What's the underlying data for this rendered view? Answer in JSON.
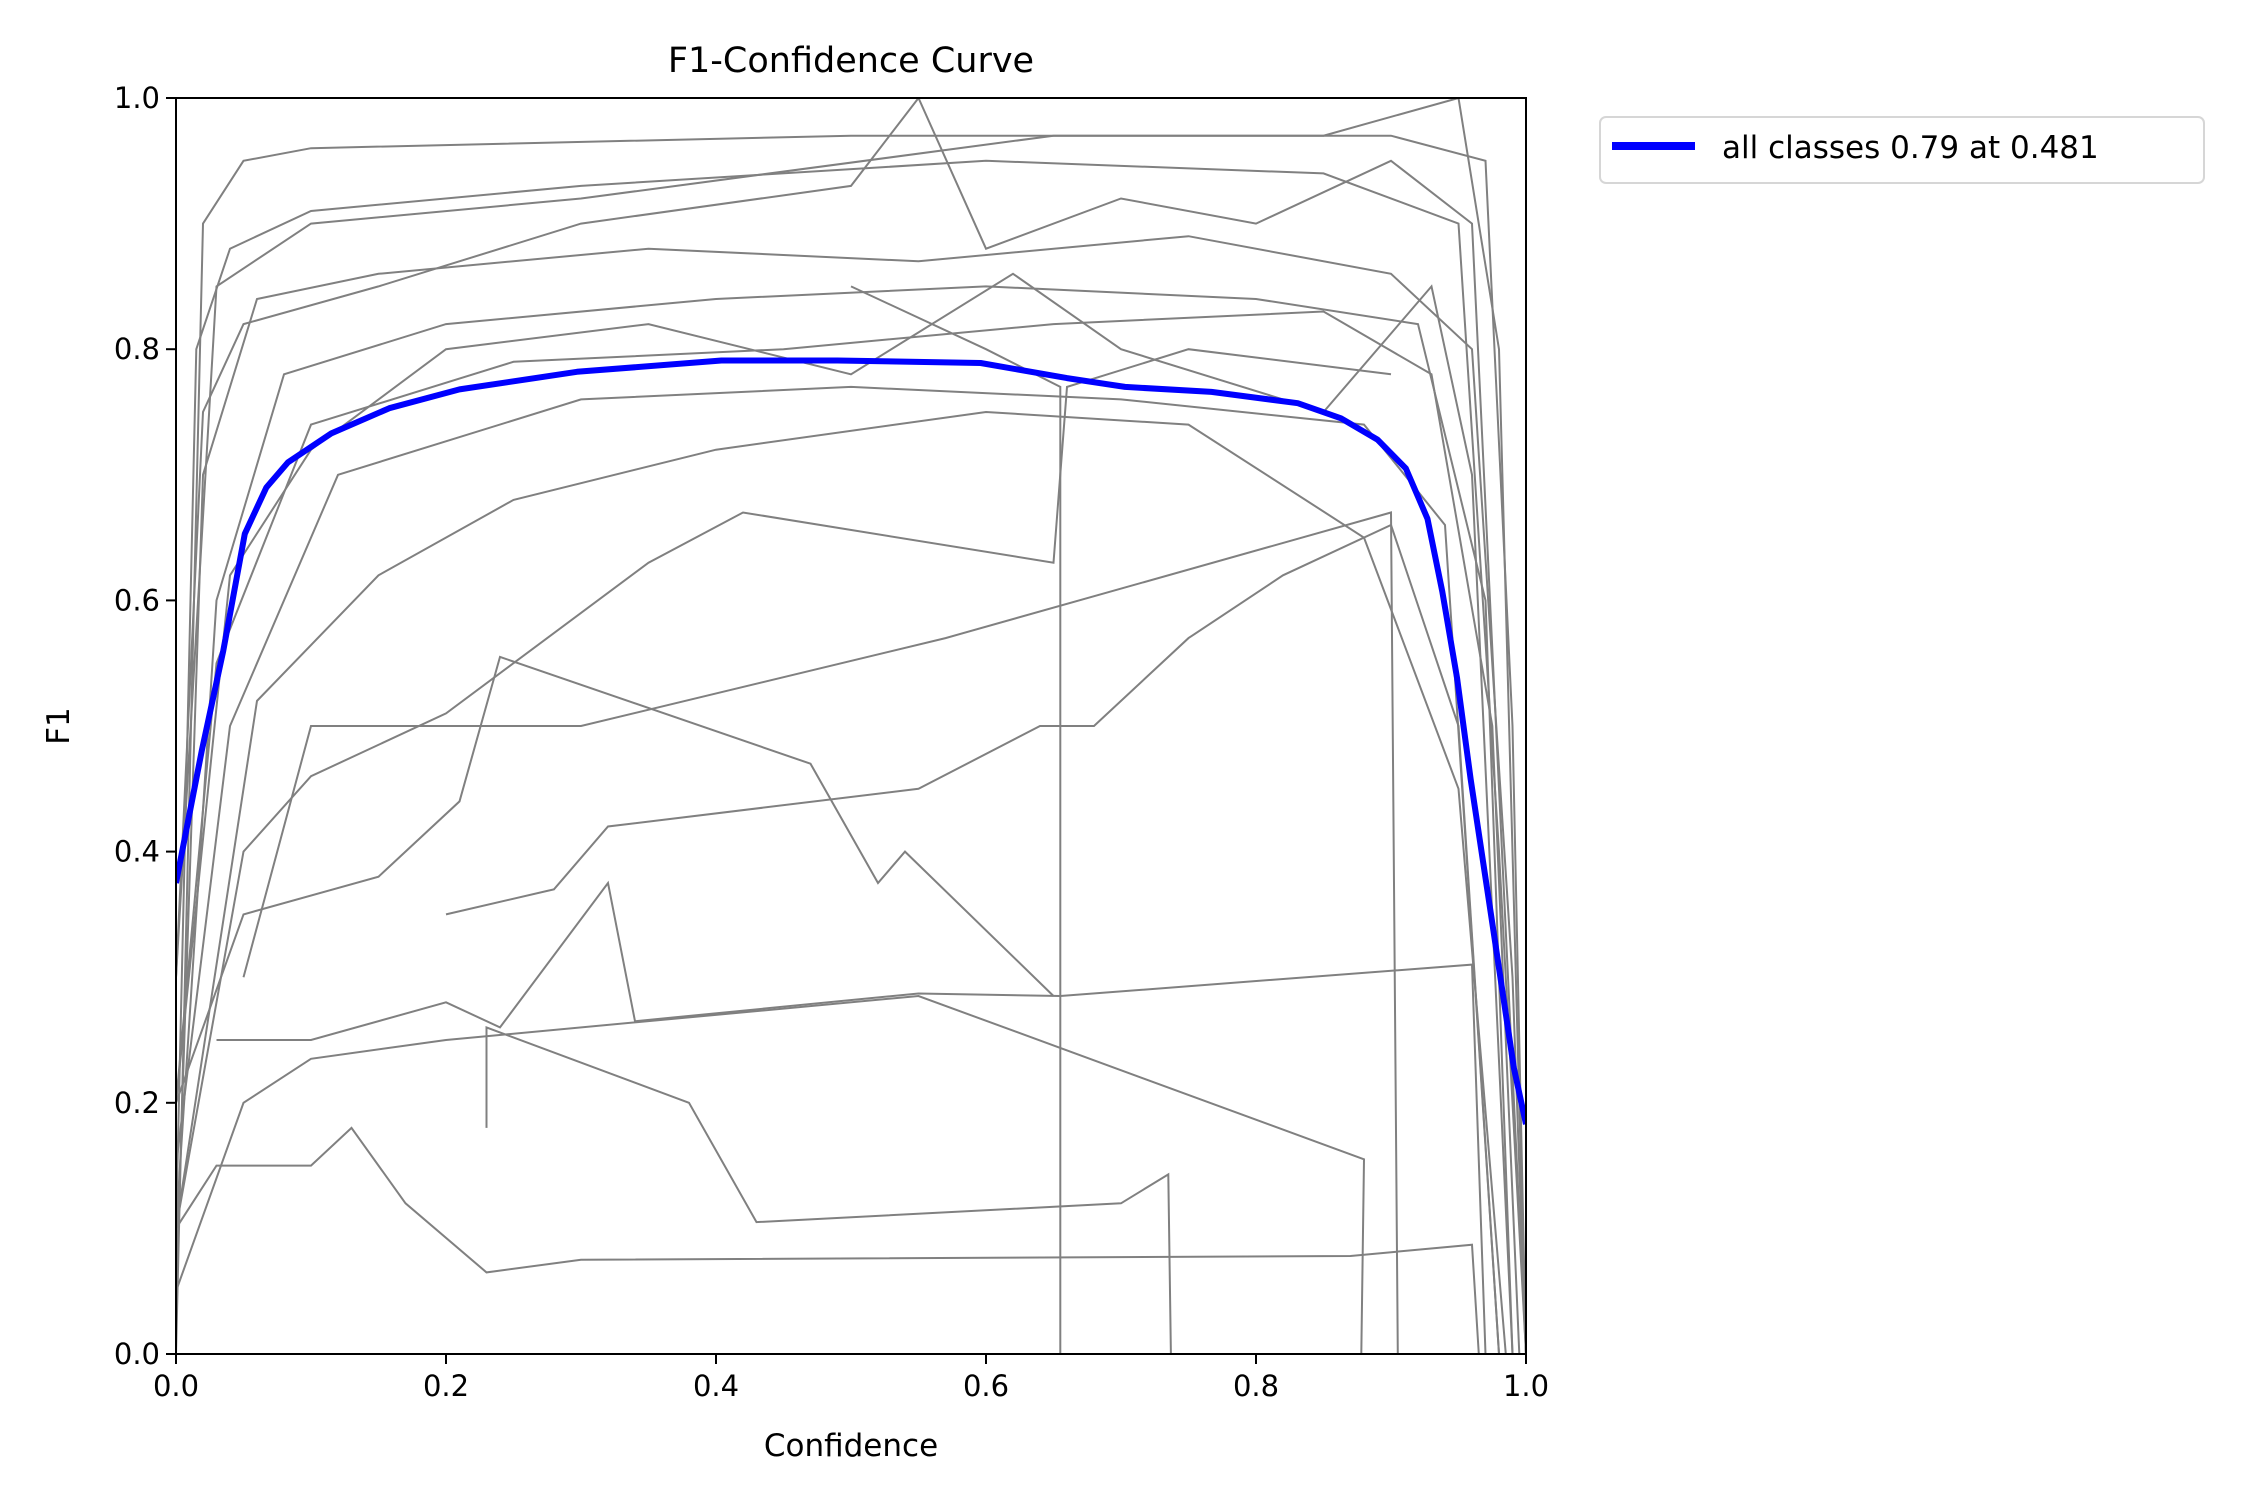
{
  "chart_data": {
    "type": "line",
    "title": "F1-Confidence Curve",
    "xlabel": "Confidence",
    "ylabel": "F1",
    "xlim": [
      0,
      1
    ],
    "ylim": [
      0,
      1
    ],
    "xticks": [
      "0.0",
      "0.2",
      "0.4",
      "0.6",
      "0.8",
      "1.0"
    ],
    "yticks": [
      "0.0",
      "0.2",
      "0.4",
      "0.6",
      "0.8",
      "1.0"
    ],
    "grid": false,
    "legend_placement": "outside-top-right",
    "colors": {
      "classes": "#808080",
      "all_classes": "#0000ff"
    },
    "series": [
      {
        "name": "all classes 0.79 at 0.481",
        "color": "#0000ff",
        "x": [
          0,
          0.019,
          0.035,
          0.051,
          0.067,
          0.083,
          0.115,
          0.158,
          0.21,
          0.297,
          0.404,
          0.49,
          0.596,
          0.66,
          0.703,
          0.767,
          0.831,
          0.863,
          0.89,
          0.911,
          0.927,
          0.938,
          0.949,
          0.959,
          0.975,
          0.991,
          1.0
        ],
        "y": [
          0.375,
          0.48,
          0.56,
          0.653,
          0.69,
          0.71,
          0.733,
          0.753,
          0.768,
          0.782,
          0.791,
          0.791,
          0.789,
          0.777,
          0.77,
          0.766,
          0.757,
          0.745,
          0.728,
          0.705,
          0.665,
          0.607,
          0.538,
          0.458,
          0.343,
          0.228,
          0.183
        ]
      }
    ],
    "class_curves": [
      {
        "x": [
          0,
          0.02,
          0.05,
          0.1,
          0.5,
          0.9,
          0.97,
          0.99,
          1.0
        ],
        "y": [
          0,
          0.9,
          0.95,
          0.96,
          0.97,
          0.97,
          0.95,
          0.5,
          0
        ]
      },
      {
        "x": [
          0,
          0.015,
          0.04,
          0.1,
          0.3,
          0.6,
          0.85,
          0.95,
          0.98,
          1.0
        ],
        "y": [
          0.1,
          0.8,
          0.88,
          0.91,
          0.93,
          0.95,
          0.94,
          0.9,
          0.4,
          0
        ]
      },
      {
        "x": [
          0,
          0.02,
          0.06,
          0.15,
          0.35,
          0.55,
          0.75,
          0.9,
          0.96,
          0.99,
          1.0
        ],
        "y": [
          0.05,
          0.7,
          0.84,
          0.86,
          0.88,
          0.87,
          0.89,
          0.86,
          0.8,
          0.3,
          0
        ]
      },
      {
        "x": [
          0,
          0.03,
          0.08,
          0.2,
          0.4,
          0.6,
          0.8,
          0.92,
          0.97,
          0.99
        ],
        "y": [
          0.1,
          0.6,
          0.78,
          0.82,
          0.84,
          0.85,
          0.84,
          0.82,
          0.6,
          0
        ]
      },
      {
        "x": [
          0,
          0.03,
          0.1,
          0.25,
          0.45,
          0.65,
          0.85,
          0.93,
          0.975,
          0.995
        ],
        "y": [
          0.2,
          0.55,
          0.74,
          0.79,
          0.8,
          0.82,
          0.83,
          0.78,
          0.5,
          0
        ]
      },
      {
        "x": [
          0,
          0.04,
          0.12,
          0.3,
          0.5,
          0.7,
          0.88,
          0.94,
          0.98
        ],
        "y": [
          0.15,
          0.5,
          0.7,
          0.76,
          0.77,
          0.76,
          0.74,
          0.66,
          0
        ]
      },
      {
        "x": [
          0,
          0.03,
          0.1,
          0.13,
          0.17,
          0.23,
          0.3,
          0.87,
          0.96,
          0.965
        ],
        "y": [
          0.1,
          0.15,
          0.15,
          0.18,
          0.12,
          0.065,
          0.075,
          0.078,
          0.087,
          0
        ]
      },
      {
        "x": [
          0,
          0.05,
          0.1,
          0.2,
          0.55,
          0.88,
          0.878
        ],
        "y": [
          0.05,
          0.2,
          0.235,
          0.25,
          0.285,
          0.155,
          0
        ]
      },
      {
        "x": [
          0.03,
          0.1,
          0.2,
          0.24,
          0.32,
          0.34,
          0.55,
          0.655,
          0.96,
          0.97
        ],
        "y": [
          0.25,
          0.25,
          0.28,
          0.26,
          0.375,
          0.265,
          0.287,
          0.285,
          0.31,
          0
        ]
      },
      {
        "x": [
          0,
          0.05,
          0.15,
          0.21,
          0.24,
          0.47,
          0.52,
          0.54,
          0.65
        ],
        "y": [
          0.2,
          0.35,
          0.38,
          0.44,
          0.555,
          0.47,
          0.375,
          0.4,
          0.285
        ]
      },
      {
        "x": [
          0,
          0.05,
          0.1,
          0.2,
          0.35,
          0.42,
          0.65,
          0.66,
          0.75,
          0.9
        ],
        "y": [
          0.1,
          0.4,
          0.46,
          0.51,
          0.63,
          0.67,
          0.63,
          0.77,
          0.8,
          0.78
        ]
      },
      {
        "x": [
          0.5,
          0.6,
          0.655,
          0.655
        ],
        "y": [
          0.85,
          0.8,
          0.77,
          0
        ]
      },
      {
        "x": [
          0.23,
          0.23,
          0.38,
          0.43,
          0.7,
          0.735,
          0.737
        ],
        "y": [
          0.18,
          0.26,
          0.2,
          0.105,
          0.12,
          0.143,
          0
        ]
      },
      {
        "x": [
          0.05,
          0.1,
          0.3,
          0.57,
          0.9,
          0.905
        ],
        "y": [
          0.3,
          0.5,
          0.5,
          0.57,
          0.67,
          0
        ]
      },
      {
        "x": [
          0.2,
          0.28,
          0.32,
          0.55,
          0.64,
          0.68,
          0.75,
          0.82,
          0.9,
          0.95,
          0.98
        ],
        "y": [
          0.35,
          0.37,
          0.42,
          0.45,
          0.5,
          0.5,
          0.57,
          0.62,
          0.66,
          0.5,
          0
        ]
      },
      {
        "x": [
          0,
          0.02,
          0.05,
          0.15,
          0.3,
          0.5,
          0.55,
          0.6,
          0.7,
          0.8,
          0.9,
          0.96,
          1.0
        ],
        "y": [
          0.3,
          0.75,
          0.82,
          0.85,
          0.9,
          0.93,
          1.0,
          0.88,
          0.92,
          0.9,
          0.95,
          0.9,
          0
        ]
      },
      {
        "x": [
          0,
          0.04,
          0.1,
          0.2,
          0.35,
          0.5,
          0.62,
          0.7,
          0.85,
          0.93,
          0.96,
          0.99
        ],
        "y": [
          0.2,
          0.62,
          0.72,
          0.8,
          0.82,
          0.78,
          0.86,
          0.8,
          0.75,
          0.85,
          0.7,
          0
        ]
      },
      {
        "x": [
          0,
          0.06,
          0.15,
          0.25,
          0.4,
          0.6,
          0.75,
          0.88,
          0.95,
          0.985
        ],
        "y": [
          0.1,
          0.52,
          0.62,
          0.68,
          0.72,
          0.75,
          0.74,
          0.65,
          0.45,
          0
        ]
      },
      {
        "x": [
          0,
          0.03,
          0.1,
          0.3,
          0.65,
          0.85,
          0.95,
          0.98,
          1.0
        ],
        "y": [
          0.3,
          0.85,
          0.9,
          0.92,
          0.97,
          0.97,
          1.0,
          0.8,
          0
        ]
      }
    ]
  }
}
